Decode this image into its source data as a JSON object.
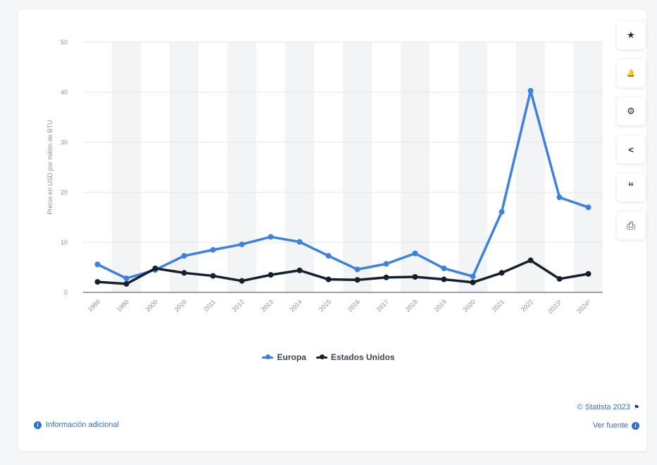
{
  "chart_data": {
    "type": "line",
    "title": "",
    "xlabel": "",
    "ylabel": "Precio en USD por millón de BTU",
    "ylim": [
      0,
      50
    ],
    "yticks": [
      0,
      10,
      20,
      30,
      40,
      50
    ],
    "grid": true,
    "legend": "bottom-center",
    "categories": [
      "1980",
      "1990",
      "2000",
      "2010",
      "2011",
      "2012",
      "2013",
      "2014",
      "2015",
      "2016",
      "2017",
      "2018",
      "2019",
      "2020",
      "2021",
      "2022",
      "2023*",
      "2024*"
    ],
    "series": [
      {
        "name": "Europa",
        "color": "#3b82e0",
        "values": [
          5.6,
          2.8,
          4.5,
          7.3,
          8.5,
          9.6,
          11.1,
          10.1,
          7.3,
          4.6,
          5.7,
          7.8,
          4.8,
          3.2,
          16.1,
          40.3,
          19.0,
          17.0
        ]
      },
      {
        "name": "Estados Unidos",
        "color": "#14202e",
        "values": [
          2.1,
          1.7,
          4.8,
          3.9,
          3.3,
          2.3,
          3.5,
          4.4,
          2.6,
          2.5,
          3.0,
          3.1,
          2.6,
          2.0,
          3.9,
          6.4,
          2.7,
          3.7
        ]
      }
    ]
  },
  "toolbar": {
    "items": [
      {
        "name": "star-icon",
        "glyph": "★"
      },
      {
        "name": "bell-icon",
        "glyph": "🔔"
      },
      {
        "name": "gear-icon",
        "glyph": "⚙"
      },
      {
        "name": "share-icon",
        "glyph": "<"
      },
      {
        "name": "quote-icon",
        "glyph": "“"
      },
      {
        "name": "print-icon",
        "glyph": "⎙"
      }
    ]
  },
  "footer": {
    "info_label": "Información adicional",
    "copyright": "© Statista 2023",
    "source_label": "Ver fuente"
  }
}
